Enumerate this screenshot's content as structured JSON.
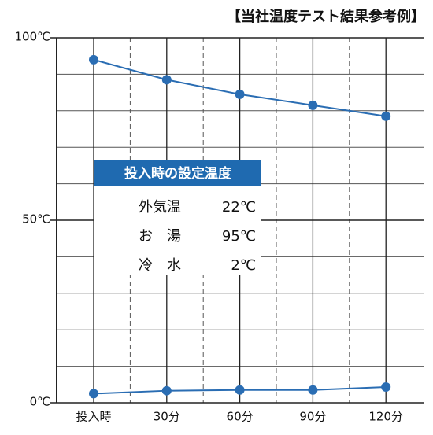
{
  "chart_data": {
    "type": "line",
    "title": "【当社温度テスト結果参考例】",
    "categories": [
      "投入時",
      "30分",
      "60分",
      "90分",
      "120分"
    ],
    "series": [
      {
        "color": "#2a6db3",
        "values": [
          94,
          88.5,
          84.5,
          81.5,
          78.5
        ]
      },
      {
        "color": "#2a6db3",
        "values": [
          2.5,
          3.3,
          3.5,
          3.5,
          4.3
        ]
      }
    ],
    "ylim": [
      0,
      100
    ],
    "yticks": [
      {
        "value": 0,
        "label": "0℃"
      },
      {
        "value": 50,
        "label": "50℃"
      },
      {
        "value": 100,
        "label": "100℃"
      }
    ],
    "ygrid": [
      10,
      20,
      30,
      40,
      60,
      70,
      80,
      90
    ],
    "annotation": {
      "title": "投入時の設定温度",
      "rows": [
        {
          "label": "外気温",
          "value": "22℃"
        },
        {
          "label": "お　湯",
          "value": "95℃"
        },
        {
          "label": "冷　水",
          "value": "2℃"
        }
      ]
    }
  }
}
